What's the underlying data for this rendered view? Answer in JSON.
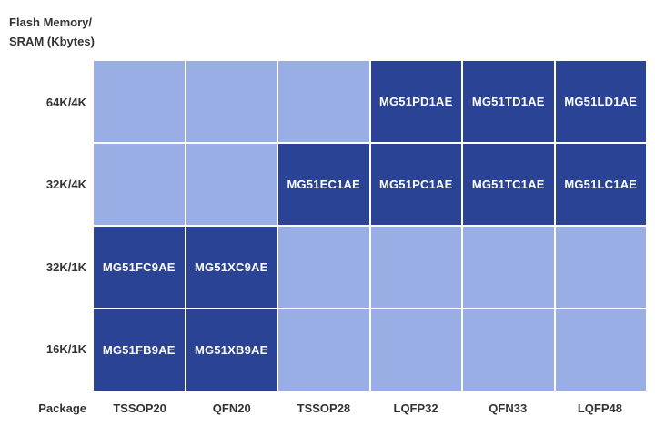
{
  "y_axis_title": [
    "Flash Memory/",
    "SRAM (Kbytes)"
  ],
  "x_axis_title": "Package",
  "rows": [
    "64K/4K",
    "32K/4K",
    "32K/1K",
    "16K/1K"
  ],
  "columns": [
    "TSSOP20",
    "QFN20",
    "TSSOP28",
    "LQFP32",
    "QFN33",
    "LQFP48"
  ],
  "cells": [
    [
      "",
      "",
      "",
      "MG51PD1AE",
      "MG51TD1AE",
      "MG51LD1AE"
    ],
    [
      "",
      "",
      "MG51EC1AE",
      "MG51PC1AE",
      "MG51TC1AE",
      "MG51LC1AE"
    ],
    [
      "MG51FC9AE",
      "MG51XC9AE",
      "",
      "",
      "",
      ""
    ],
    [
      "MG51FB9AE",
      "MG51XB9AE",
      "",
      "",
      "",
      ""
    ]
  ],
  "colors": {
    "available": "#2b4394",
    "empty": "#9aaee6",
    "cell_text": "#ffffff",
    "label_text": "#333333"
  }
}
